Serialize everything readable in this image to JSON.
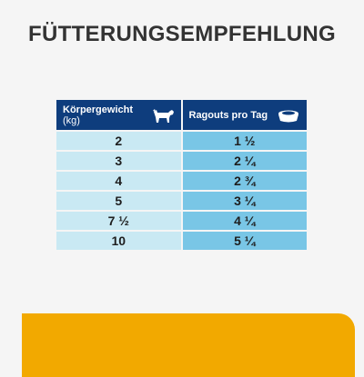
{
  "title": "FÜTTERUNGSEMPFEHLUNG",
  "table": {
    "header_weight": "Körpergewicht",
    "header_weight_unit": "(kg)",
    "header_portions": "Ragouts pro Tag",
    "icons": {
      "weight": "dog-icon",
      "portions": "bowl-icon"
    },
    "rows": [
      {
        "weight": "2",
        "portions": "1 ½"
      },
      {
        "weight": "3",
        "portions": "2 ¼"
      },
      {
        "weight": "4",
        "portions": "2 ¾"
      },
      {
        "weight": "5",
        "portions": "3 ¼"
      },
      {
        "weight": "7 ½",
        "portions": "4 ¼"
      },
      {
        "weight": "10",
        "portions": "5 ¼"
      }
    ]
  },
  "colors": {
    "header_bg": "#0e3d7d",
    "left_column_bg": "#c9e9f3",
    "right_column_bg": "#79c6e6",
    "accent_bar": "#f2a900"
  }
}
